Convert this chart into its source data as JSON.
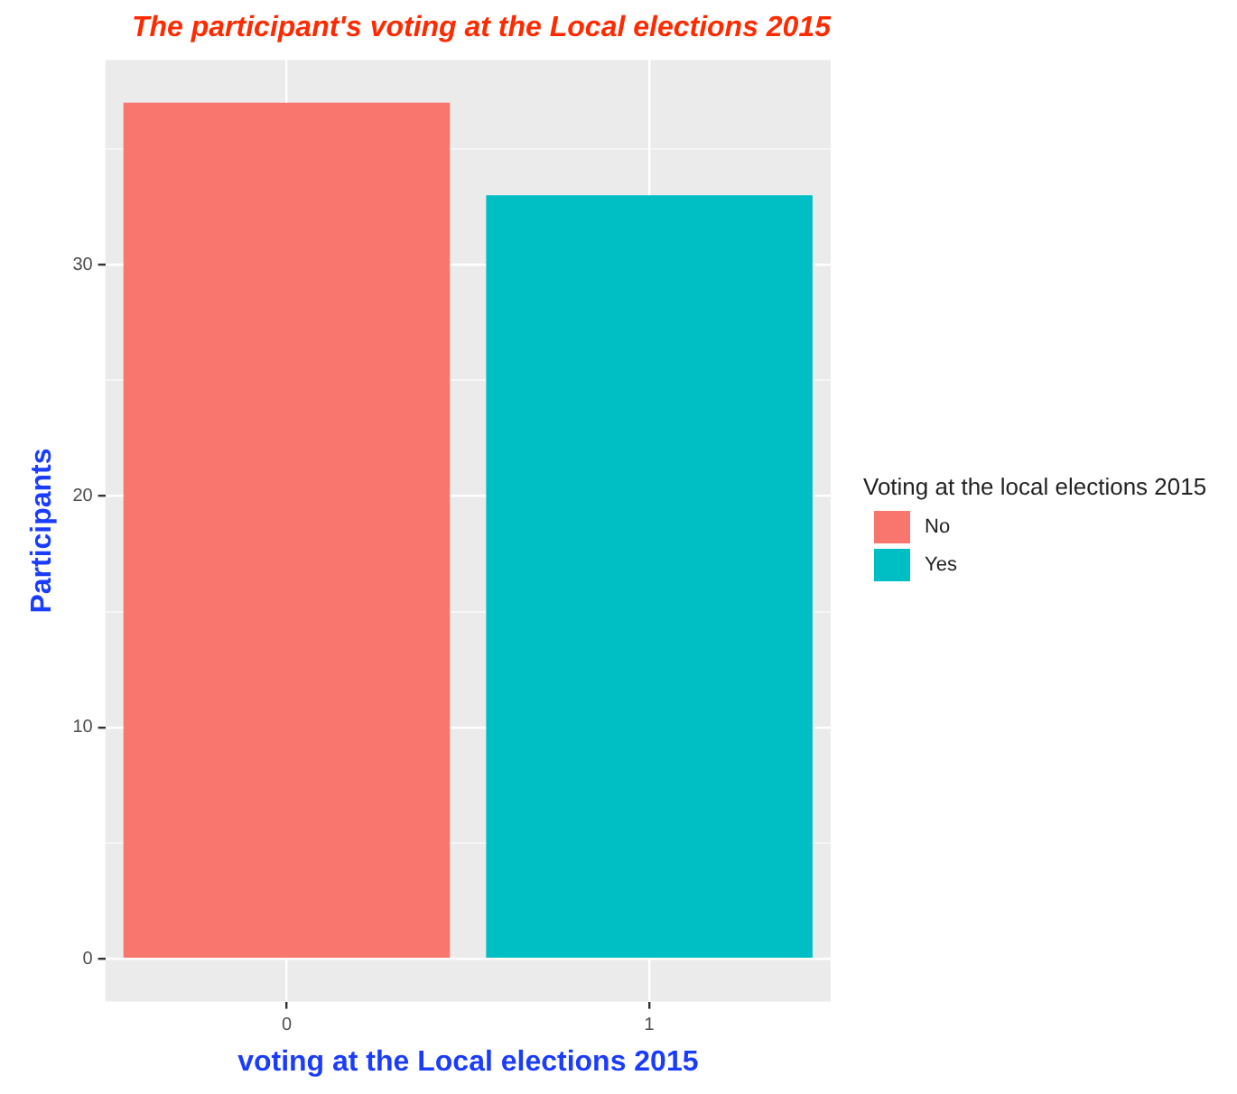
{
  "chart_data": {
    "type": "bar",
    "title": "The participant's voting at the Local elections 2015",
    "xlabel": "voting at the Local elections 2015",
    "ylabel": "Participants",
    "legend_title": "Voting at the local elections 2015",
    "categories": [
      "0",
      "1"
    ],
    "series": [
      {
        "name": "No",
        "color": "#f8766d",
        "values": [
          37,
          null
        ]
      },
      {
        "name": "Yes",
        "color": "#00bfc4",
        "values": [
          null,
          33
        ]
      }
    ],
    "ylim": [
      -1.85,
      38.85
    ],
    "yticks": [
      0,
      {
        "value": 5,
        "label": null
      },
      10,
      {
        "value": 15,
        "label": null
      },
      20,
      {
        "value": 25,
        "label": null
      },
      30,
      {
        "value": 35,
        "label": null
      }
    ],
    "grid": true,
    "legend": "right"
  }
}
